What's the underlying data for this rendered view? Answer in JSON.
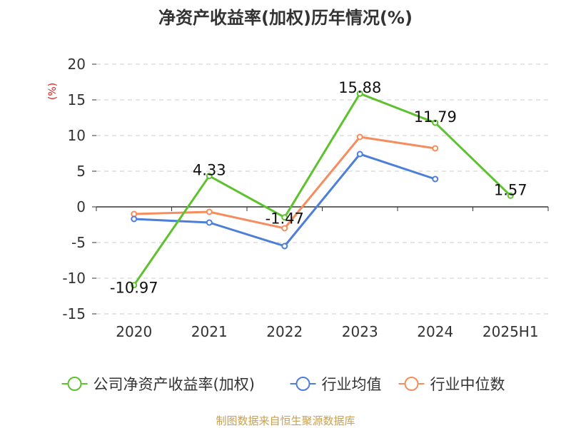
{
  "chart_data": {
    "type": "line",
    "title": "净资产收益率(加权)历年情况(%)",
    "ylabel": "(%)",
    "categories": [
      "2020",
      "2021",
      "2022",
      "2023",
      "2024",
      "2025H1"
    ],
    "ylim": [
      -15,
      20
    ],
    "yticks": [
      20,
      15,
      10,
      5,
      0,
      -5,
      -10,
      -15
    ],
    "grid": true,
    "legend_position": "bottom",
    "series": [
      {
        "name": "公司净资产收益率(加权)",
        "color": "#5ec22f",
        "values": [
          -10.97,
          4.33,
          -1.47,
          15.88,
          11.79,
          1.57
        ],
        "labels": true
      },
      {
        "name": "行业均值",
        "color": "#4e7fd8",
        "values": [
          -1.7,
          -2.2,
          -5.5,
          7.4,
          3.9,
          null
        ],
        "labels": false
      },
      {
        "name": "行业中位数",
        "color": "#f58d5e",
        "values": [
          -1.0,
          -0.7,
          -3.0,
          9.8,
          8.2,
          null
        ],
        "labels": false
      }
    ]
  },
  "source": "制图数据来自恒生聚源数据库"
}
